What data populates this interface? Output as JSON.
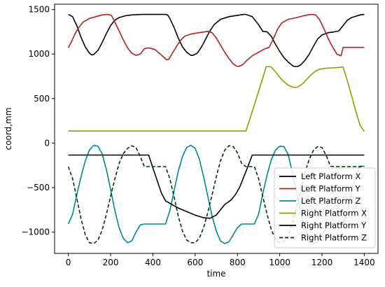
{
  "chart_data": {
    "type": "line",
    "title": "",
    "xlabel": "time",
    "ylabel": "coord,mm",
    "xlim": [
      -65,
      1465
    ],
    "ylim": [
      -1240,
      1560
    ],
    "xticks": [
      0,
      200,
      400,
      600,
      800,
      1000,
      1200,
      1400
    ],
    "yticks": [
      -1000,
      -500,
      0,
      500,
      1000,
      1500
    ],
    "grid": false,
    "legend": "bottom-right",
    "series": [
      {
        "name": "Left Platform X",
        "color": "#000000",
        "dash": "solid",
        "points": [
          [
            0,
            1445
          ],
          [
            20,
            1420
          ],
          [
            40,
            1320
          ],
          [
            60,
            1190
          ],
          [
            80,
            1080
          ],
          [
            100,
            1010
          ],
          [
            110,
            990
          ],
          [
            120,
            995
          ],
          [
            140,
            1040
          ],
          [
            160,
            1130
          ],
          [
            180,
            1230
          ],
          [
            200,
            1320
          ],
          [
            220,
            1380
          ],
          [
            240,
            1410
          ],
          [
            270,
            1430
          ],
          [
            300,
            1440
          ],
          [
            350,
            1445
          ],
          [
            400,
            1445
          ],
          [
            460,
            1445
          ],
          [
            470,
            1440
          ],
          [
            480,
            1400
          ],
          [
            500,
            1300
          ],
          [
            520,
            1180
          ],
          [
            540,
            1080
          ],
          [
            560,
            1020
          ],
          [
            580,
            985
          ],
          [
            590,
            985
          ],
          [
            610,
            1010
          ],
          [
            630,
            1080
          ],
          [
            650,
            1170
          ],
          [
            670,
            1260
          ],
          [
            690,
            1330
          ],
          [
            720,
            1390
          ],
          [
            760,
            1420
          ],
          [
            800,
            1435
          ],
          [
            830,
            1445
          ],
          [
            840,
            1445
          ],
          [
            870,
            1420
          ],
          [
            900,
            1330
          ],
          [
            920,
            1255
          ],
          [
            940,
            1250
          ],
          [
            960,
            1200
          ],
          [
            980,
            1110
          ],
          [
            1000,
            1030
          ],
          [
            1020,
            960
          ],
          [
            1040,
            910
          ],
          [
            1060,
            870
          ],
          [
            1070,
            860
          ],
          [
            1085,
            860
          ],
          [
            1100,
            880
          ],
          [
            1120,
            930
          ],
          [
            1140,
            1000
          ],
          [
            1160,
            1090
          ],
          [
            1180,
            1170
          ],
          [
            1200,
            1215
          ],
          [
            1230,
            1240
          ],
          [
            1260,
            1250
          ],
          [
            1280,
            1260
          ],
          [
            1300,
            1320
          ],
          [
            1320,
            1380
          ],
          [
            1340,
            1410
          ],
          [
            1360,
            1425
          ],
          [
            1380,
            1440
          ],
          [
            1400,
            1445
          ]
        ]
      },
      {
        "name": "Left Platform Y",
        "color": "#b22222",
        "dash": "solid",
        "points": [
          [
            0,
            1070
          ],
          [
            15,
            1140
          ],
          [
            30,
            1220
          ],
          [
            50,
            1300
          ],
          [
            70,
            1360
          ],
          [
            100,
            1400
          ],
          [
            130,
            1420
          ],
          [
            160,
            1440
          ],
          [
            190,
            1445
          ],
          [
            205,
            1430
          ],
          [
            220,
            1360
          ],
          [
            240,
            1260
          ],
          [
            260,
            1160
          ],
          [
            280,
            1070
          ],
          [
            300,
            1010
          ],
          [
            320,
            985
          ],
          [
            340,
            1000
          ],
          [
            360,
            1060
          ],
          [
            380,
            1070
          ],
          [
            410,
            1050
          ],
          [
            440,
            990
          ],
          [
            465,
            935
          ],
          [
            475,
            940
          ],
          [
            490,
            1000
          ],
          [
            510,
            1080
          ],
          [
            530,
            1150
          ],
          [
            550,
            1200
          ],
          [
            580,
            1225
          ],
          [
            620,
            1240
          ],
          [
            660,
            1255
          ],
          [
            680,
            1240
          ],
          [
            700,
            1180
          ],
          [
            720,
            1100
          ],
          [
            740,
            1020
          ],
          [
            760,
            950
          ],
          [
            780,
            890
          ],
          [
            795,
            865
          ],
          [
            805,
            860
          ],
          [
            825,
            880
          ],
          [
            845,
            930
          ],
          [
            870,
            980
          ],
          [
            900,
            1020
          ],
          [
            930,
            1060
          ],
          [
            950,
            1075
          ],
          [
            970,
            1170
          ],
          [
            990,
            1280
          ],
          [
            1010,
            1350
          ],
          [
            1040,
            1390
          ],
          [
            1080,
            1410
          ],
          [
            1120,
            1435
          ],
          [
            1150,
            1445
          ],
          [
            1170,
            1440
          ],
          [
            1190,
            1380
          ],
          [
            1210,
            1280
          ],
          [
            1230,
            1170
          ],
          [
            1250,
            1080
          ],
          [
            1270,
            1000
          ],
          [
            1290,
            980
          ],
          [
            1300,
            1075
          ],
          [
            1350,
            1075
          ],
          [
            1400,
            1075
          ]
        ]
      },
      {
        "name": "Left Platform Z",
        "color": "#008b8b",
        "dash": "solid",
        "points": [
          [
            0,
            -910
          ],
          [
            20,
            -800
          ],
          [
            40,
            -580
          ],
          [
            60,
            -380
          ],
          [
            80,
            -200
          ],
          [
            100,
            -80
          ],
          [
            120,
            -25
          ],
          [
            140,
            -35
          ],
          [
            160,
            -120
          ],
          [
            180,
            -300
          ],
          [
            200,
            -520
          ],
          [
            220,
            -760
          ],
          [
            240,
            -950
          ],
          [
            260,
            -1070
          ],
          [
            280,
            -1120
          ],
          [
            300,
            -1100
          ],
          [
            320,
            -1000
          ],
          [
            340,
            -920
          ],
          [
            360,
            -910
          ],
          [
            380,
            -910
          ],
          [
            460,
            -910
          ],
          [
            480,
            -760
          ],
          [
            500,
            -540
          ],
          [
            520,
            -320
          ],
          [
            540,
            -150
          ],
          [
            560,
            -50
          ],
          [
            580,
            -25
          ],
          [
            600,
            -60
          ],
          [
            620,
            -180
          ],
          [
            640,
            -380
          ],
          [
            660,
            -600
          ],
          [
            680,
            -820
          ],
          [
            700,
            -990
          ],
          [
            720,
            -1100
          ],
          [
            740,
            -1130
          ],
          [
            760,
            -1110
          ],
          [
            780,
            -1030
          ],
          [
            800,
            -950
          ],
          [
            820,
            -910
          ],
          [
            840,
            -910
          ],
          [
            860,
            -910
          ],
          [
            880,
            -910
          ],
          [
            900,
            -800
          ],
          [
            920,
            -570
          ],
          [
            940,
            -360
          ],
          [
            960,
            -190
          ],
          [
            980,
            -80
          ],
          [
            1000,
            -35
          ],
          [
            1020,
            -40
          ],
          [
            1040,
            -130
          ],
          [
            1060,
            -330
          ],
          [
            1080,
            -560
          ],
          [
            1100,
            -780
          ],
          [
            1120,
            -960
          ],
          [
            1140,
            -1080
          ],
          [
            1160,
            -1130
          ],
          [
            1180,
            -1110
          ],
          [
            1200,
            -1030
          ],
          [
            1220,
            -950
          ],
          [
            1240,
            -910
          ],
          [
            1260,
            -910
          ],
          [
            1300,
            -910
          ],
          [
            1320,
            -780
          ],
          [
            1340,
            -560
          ],
          [
            1360,
            -360
          ],
          [
            1380,
            -260
          ],
          [
            1400,
            -260
          ]
        ]
      },
      {
        "name": "Right Platform X",
        "color": "#9a9a00",
        "dash": "solid",
        "points": [
          [
            0,
            135
          ],
          [
            200,
            135
          ],
          [
            400,
            135
          ],
          [
            600,
            135
          ],
          [
            800,
            135
          ],
          [
            840,
            135
          ],
          [
            860,
            280
          ],
          [
            880,
            430
          ],
          [
            900,
            580
          ],
          [
            920,
            730
          ],
          [
            935,
            855
          ],
          [
            950,
            860
          ],
          [
            960,
            855
          ],
          [
            980,
            800
          ],
          [
            1000,
            740
          ],
          [
            1020,
            690
          ],
          [
            1040,
            650
          ],
          [
            1060,
            630
          ],
          [
            1075,
            625
          ],
          [
            1090,
            635
          ],
          [
            1110,
            670
          ],
          [
            1130,
            720
          ],
          [
            1150,
            770
          ],
          [
            1170,
            810
          ],
          [
            1190,
            830
          ],
          [
            1220,
            840
          ],
          [
            1250,
            845
          ],
          [
            1280,
            850
          ],
          [
            1300,
            855
          ],
          [
            1320,
            700
          ],
          [
            1340,
            530
          ],
          [
            1360,
            360
          ],
          [
            1380,
            200
          ],
          [
            1400,
            130
          ]
        ]
      },
      {
        "name": "Right Platform Y",
        "color": "#000000",
        "dash": "solid",
        "points": [
          [
            0,
            -135
          ],
          [
            100,
            -135
          ],
          [
            200,
            -135
          ],
          [
            300,
            -135
          ],
          [
            380,
            -135
          ],
          [
            400,
            -280
          ],
          [
            420,
            -420
          ],
          [
            440,
            -560
          ],
          [
            460,
            -650
          ],
          [
            490,
            -690
          ],
          [
            520,
            -730
          ],
          [
            560,
            -770
          ],
          [
            600,
            -810
          ],
          [
            640,
            -840
          ],
          [
            670,
            -845
          ],
          [
            700,
            -810
          ],
          [
            740,
            -690
          ],
          [
            770,
            -640
          ],
          [
            790,
            -580
          ],
          [
            810,
            -500
          ],
          [
            830,
            -380
          ],
          [
            850,
            -260
          ],
          [
            870,
            -135
          ],
          [
            900,
            -135
          ],
          [
            1000,
            -135
          ],
          [
            1100,
            -135
          ],
          [
            1200,
            -135
          ],
          [
            1300,
            -135
          ],
          [
            1400,
            -135
          ]
        ]
      },
      {
        "name": "Right Platform Z",
        "color": "#003300",
        "dash": "dashed",
        "points": [
          [
            0,
            -265
          ],
          [
            20,
            -400
          ],
          [
            40,
            -620
          ],
          [
            60,
            -850
          ],
          [
            80,
            -1030
          ],
          [
            100,
            -1120
          ],
          [
            120,
            -1130
          ],
          [
            140,
            -1090
          ],
          [
            160,
            -980
          ],
          [
            180,
            -800
          ],
          [
            200,
            -600
          ],
          [
            220,
            -400
          ],
          [
            240,
            -230
          ],
          [
            260,
            -120
          ],
          [
            280,
            -60
          ],
          [
            300,
            -30
          ],
          [
            320,
            -50
          ],
          [
            340,
            -150
          ],
          [
            360,
            -265
          ],
          [
            380,
            -265
          ],
          [
            460,
            -265
          ],
          [
            480,
            -400
          ],
          [
            500,
            -600
          ],
          [
            520,
            -820
          ],
          [
            540,
            -990
          ],
          [
            560,
            -1090
          ],
          [
            580,
            -1120
          ],
          [
            600,
            -1120
          ],
          [
            620,
            -1070
          ],
          [
            640,
            -950
          ],
          [
            660,
            -780
          ],
          [
            680,
            -580
          ],
          [
            700,
            -380
          ],
          [
            720,
            -200
          ],
          [
            740,
            -80
          ],
          [
            760,
            -30
          ],
          [
            780,
            -40
          ],
          [
            800,
            -110
          ],
          [
            820,
            -230
          ],
          [
            840,
            -265
          ],
          [
            880,
            -265
          ],
          [
            900,
            -400
          ],
          [
            920,
            -600
          ],
          [
            940,
            -800
          ],
          [
            960,
            -970
          ],
          [
            980,
            -1080
          ],
          [
            1000,
            -1120
          ],
          [
            1020,
            -1110
          ],
          [
            1040,
            -1040
          ],
          [
            1060,
            -900
          ],
          [
            1080,
            -720
          ],
          [
            1100,
            -520
          ],
          [
            1120,
            -330
          ],
          [
            1140,
            -180
          ],
          [
            1160,
            -80
          ],
          [
            1180,
            -40
          ],
          [
            1200,
            -50
          ],
          [
            1220,
            -140
          ],
          [
            1240,
            -260
          ],
          [
            1260,
            -265
          ],
          [
            1400,
            -265
          ]
        ]
      }
    ]
  }
}
